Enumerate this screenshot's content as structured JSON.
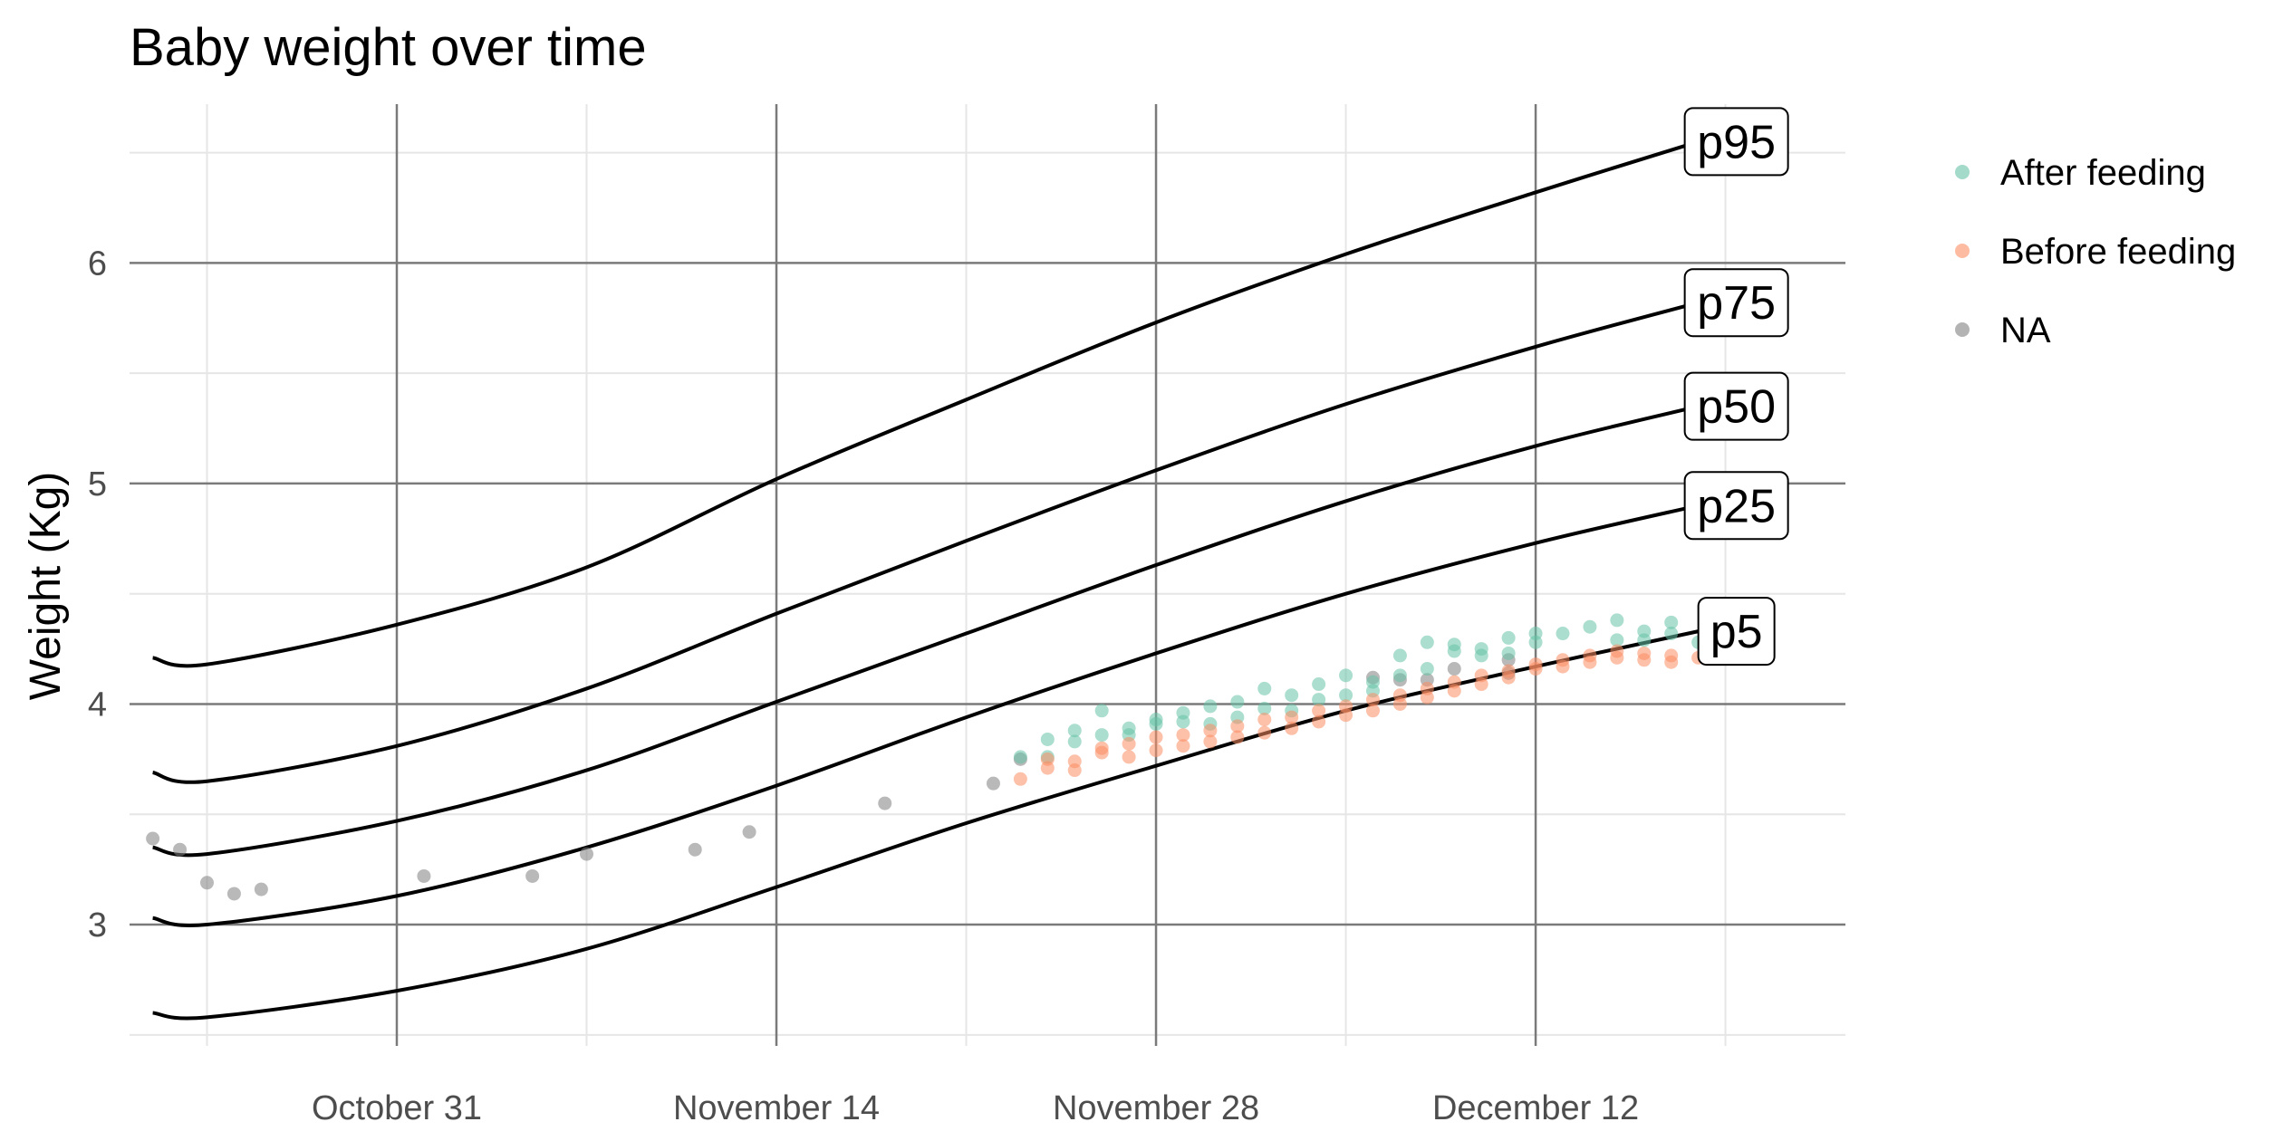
{
  "chart_data": {
    "type": "scatter",
    "title": "Baby weight over time",
    "xlabel": "",
    "ylabel": "Weight (Kg)",
    "x_axis_type": "date",
    "x_ticks": [
      "October 31",
      "November 14",
      "November 28",
      "December 12"
    ],
    "xlim": [
      "2021-10-21",
      "2022-12-21"
    ],
    "ylim": [
      2.45,
      6.72
    ],
    "y_ticks": [
      3,
      4,
      5,
      6
    ],
    "grid": true,
    "legend_position": "right",
    "legend": [
      {
        "name": "After feeding",
        "color": "#66c2a5"
      },
      {
        "name": "Before feeding",
        "color": "#fc8d62"
      },
      {
        "name": "NA",
        "color": "#808080"
      }
    ],
    "percentile_curves": [
      {
        "name": "p95",
        "label": "p95",
        "points": [
          [
            "2021-10-22",
            4.21
          ],
          [
            "2021-10-24",
            4.18
          ],
          [
            "2021-10-31",
            4.36
          ],
          [
            "2021-11-07",
            4.62
          ],
          [
            "2021-11-14",
            5.02
          ],
          [
            "2021-11-21",
            5.38
          ],
          [
            "2021-11-28",
            5.73
          ],
          [
            "2021-12-05",
            6.04
          ],
          [
            "2021-12-12",
            6.32
          ],
          [
            "2021-12-18",
            6.55
          ]
        ]
      },
      {
        "name": "p75",
        "label": "p75",
        "points": [
          [
            "2021-10-22",
            3.69
          ],
          [
            "2021-10-24",
            3.65
          ],
          [
            "2021-10-31",
            3.81
          ],
          [
            "2021-11-07",
            4.07
          ],
          [
            "2021-11-14",
            4.41
          ],
          [
            "2021-11-21",
            4.74
          ],
          [
            "2021-11-28",
            5.06
          ],
          [
            "2021-12-05",
            5.36
          ],
          [
            "2021-12-12",
            5.62
          ],
          [
            "2021-12-18",
            5.82
          ]
        ]
      },
      {
        "name": "p50",
        "label": "p50",
        "points": [
          [
            "2021-10-22",
            3.35
          ],
          [
            "2021-10-24",
            3.32
          ],
          [
            "2021-10-31",
            3.47
          ],
          [
            "2021-11-07",
            3.7
          ],
          [
            "2021-11-14",
            4.01
          ],
          [
            "2021-11-21",
            4.32
          ],
          [
            "2021-11-28",
            4.63
          ],
          [
            "2021-12-05",
            4.92
          ],
          [
            "2021-12-12",
            5.17
          ],
          [
            "2021-12-18",
            5.35
          ]
        ]
      },
      {
        "name": "p25",
        "label": "p25",
        "points": [
          [
            "2021-10-22",
            3.03
          ],
          [
            "2021-10-24",
            3.0
          ],
          [
            "2021-10-31",
            3.13
          ],
          [
            "2021-11-07",
            3.35
          ],
          [
            "2021-11-14",
            3.63
          ],
          [
            "2021-11-21",
            3.94
          ],
          [
            "2021-11-28",
            4.23
          ],
          [
            "2021-12-05",
            4.5
          ],
          [
            "2021-12-12",
            4.73
          ],
          [
            "2021-12-18",
            4.9
          ]
        ]
      },
      {
        "name": "p5",
        "label": "p5",
        "points": [
          [
            "2021-10-22",
            2.6
          ],
          [
            "2021-10-24",
            2.58
          ],
          [
            "2021-10-31",
            2.7
          ],
          [
            "2021-11-07",
            2.89
          ],
          [
            "2021-11-14",
            3.17
          ],
          [
            "2021-11-21",
            3.46
          ],
          [
            "2021-11-28",
            3.72
          ],
          [
            "2021-12-05",
            3.97
          ],
          [
            "2021-12-12",
            4.17
          ],
          [
            "2021-12-18",
            4.33
          ]
        ]
      }
    ],
    "series": [
      {
        "name": "NA",
        "color": "#808080",
        "points": [
          [
            "2021-10-22",
            3.39
          ],
          [
            "2021-10-23",
            3.34
          ],
          [
            "2021-10-24",
            3.19
          ],
          [
            "2021-10-25",
            3.14
          ],
          [
            "2021-10-26",
            3.16
          ],
          [
            "2021-11-01",
            3.22
          ],
          [
            "2021-11-05",
            3.22
          ],
          [
            "2021-11-07",
            3.32
          ],
          [
            "2021-11-11",
            3.34
          ],
          [
            "2021-11-13",
            3.42
          ],
          [
            "2021-11-18",
            3.55
          ],
          [
            "2021-11-22",
            3.64
          ],
          [
            "2021-11-23",
            3.75
          ],
          [
            "2021-12-06",
            4.12
          ],
          [
            "2021-12-07",
            4.11
          ],
          [
            "2021-12-08",
            4.11
          ],
          [
            "2021-12-09",
            4.16
          ],
          [
            "2021-12-11",
            4.2
          ],
          [
            "2021-12-11",
            4.14
          ]
        ]
      },
      {
        "name": "After feeding",
        "color": "#66c2a5",
        "points": [
          [
            "2021-11-23",
            3.76
          ],
          [
            "2021-11-24",
            3.84
          ],
          [
            "2021-11-24",
            3.76
          ],
          [
            "2021-11-25",
            3.88
          ],
          [
            "2021-11-25",
            3.83
          ],
          [
            "2021-11-26",
            3.86
          ],
          [
            "2021-11-26",
            3.97
          ],
          [
            "2021-11-27",
            3.86
          ],
          [
            "2021-11-27",
            3.89
          ],
          [
            "2021-11-28",
            3.93
          ],
          [
            "2021-11-28",
            3.91
          ],
          [
            "2021-11-29",
            3.96
          ],
          [
            "2021-11-29",
            3.92
          ],
          [
            "2021-11-30",
            3.99
          ],
          [
            "2021-11-30",
            3.91
          ],
          [
            "2021-12-01",
            4.01
          ],
          [
            "2021-12-01",
            3.94
          ],
          [
            "2021-12-02",
            4.07
          ],
          [
            "2021-12-02",
            3.98
          ],
          [
            "2021-12-03",
            4.04
          ],
          [
            "2021-12-03",
            3.97
          ],
          [
            "2021-12-04",
            4.09
          ],
          [
            "2021-12-04",
            4.02
          ],
          [
            "2021-12-05",
            4.13
          ],
          [
            "2021-12-05",
            4.04
          ],
          [
            "2021-12-06",
            4.1
          ],
          [
            "2021-12-06",
            4.06
          ],
          [
            "2021-12-07",
            4.22
          ],
          [
            "2021-12-07",
            4.13
          ],
          [
            "2021-12-08",
            4.28
          ],
          [
            "2021-12-08",
            4.16
          ],
          [
            "2021-12-09",
            4.24
          ],
          [
            "2021-12-09",
            4.27
          ],
          [
            "2021-12-10",
            4.25
          ],
          [
            "2021-12-10",
            4.22
          ],
          [
            "2021-12-11",
            4.3
          ],
          [
            "2021-12-11",
            4.23
          ],
          [
            "2021-12-12",
            4.28
          ],
          [
            "2021-12-12",
            4.32
          ],
          [
            "2021-12-13",
            4.32
          ],
          [
            "2021-12-14",
            4.35
          ],
          [
            "2021-12-15",
            4.38
          ],
          [
            "2021-12-15",
            4.29
          ],
          [
            "2021-12-16",
            4.33
          ],
          [
            "2021-12-16",
            4.29
          ],
          [
            "2021-12-17",
            4.37
          ],
          [
            "2021-12-17",
            4.32
          ],
          [
            "2021-12-18",
            4.28
          ]
        ]
      },
      {
        "name": "Before feeding",
        "color": "#fc8d62",
        "points": [
          [
            "2021-11-23",
            3.66
          ],
          [
            "2021-11-24",
            3.71
          ],
          [
            "2021-11-24",
            3.75
          ],
          [
            "2021-11-25",
            3.74
          ],
          [
            "2021-11-25",
            3.7
          ],
          [
            "2021-11-26",
            3.78
          ],
          [
            "2021-11-26",
            3.8
          ],
          [
            "2021-11-27",
            3.76
          ],
          [
            "2021-11-27",
            3.82
          ],
          [
            "2021-11-28",
            3.79
          ],
          [
            "2021-11-28",
            3.85
          ],
          [
            "2021-11-29",
            3.81
          ],
          [
            "2021-11-29",
            3.86
          ],
          [
            "2021-11-30",
            3.83
          ],
          [
            "2021-11-30",
            3.88
          ],
          [
            "2021-12-01",
            3.85
          ],
          [
            "2021-12-01",
            3.9
          ],
          [
            "2021-12-02",
            3.87
          ],
          [
            "2021-12-02",
            3.93
          ],
          [
            "2021-12-03",
            3.89
          ],
          [
            "2021-12-03",
            3.94
          ],
          [
            "2021-12-04",
            3.92
          ],
          [
            "2021-12-04",
            3.97
          ],
          [
            "2021-12-05",
            3.95
          ],
          [
            "2021-12-05",
            3.99
          ],
          [
            "2021-12-06",
            3.97
          ],
          [
            "2021-12-06",
            4.02
          ],
          [
            "2021-12-07",
            4.0
          ],
          [
            "2021-12-07",
            4.04
          ],
          [
            "2021-12-08",
            4.03
          ],
          [
            "2021-12-08",
            4.07
          ],
          [
            "2021-12-09",
            4.06
          ],
          [
            "2021-12-09",
            4.1
          ],
          [
            "2021-12-10",
            4.09
          ],
          [
            "2021-12-10",
            4.13
          ],
          [
            "2021-12-11",
            4.12
          ],
          [
            "2021-12-11",
            4.15
          ],
          [
            "2021-12-12",
            4.16
          ],
          [
            "2021-12-12",
            4.18
          ],
          [
            "2021-12-13",
            4.17
          ],
          [
            "2021-12-13",
            4.2
          ],
          [
            "2021-12-14",
            4.19
          ],
          [
            "2021-12-14",
            4.22
          ],
          [
            "2021-12-15",
            4.21
          ],
          [
            "2021-12-15",
            4.24
          ],
          [
            "2021-12-16",
            4.2
          ],
          [
            "2021-12-16",
            4.23
          ],
          [
            "2021-12-17",
            4.19
          ],
          [
            "2021-12-17",
            4.22
          ],
          [
            "2021-12-18",
            4.21
          ]
        ]
      }
    ]
  }
}
